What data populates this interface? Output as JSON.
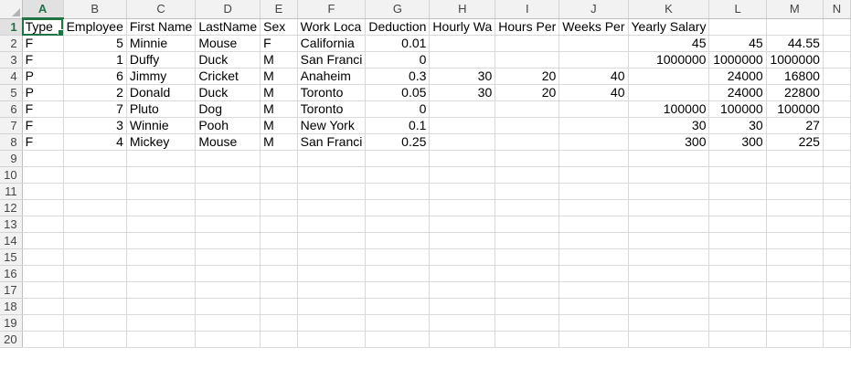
{
  "columns": [
    "A",
    "B",
    "C",
    "D",
    "E",
    "F",
    "G",
    "H",
    "I",
    "J",
    "K",
    "L",
    "M",
    "N"
  ],
  "active_column": "A",
  "active_row": "1",
  "rows": [
    {
      "n": "1",
      "cells": [
        "Type",
        "Employee",
        "First Name",
        "LastName",
        "Sex",
        "Work Loca",
        "Deduction",
        "Hourly Wa",
        "Hours Per",
        "Weeks Per",
        "Yearly Salary",
        "",
        "",
        ""
      ]
    },
    {
      "n": "2",
      "cells": [
        "F",
        "5",
        "Minnie",
        "Mouse",
        "F",
        "California",
        "0.01",
        "",
        "",
        "",
        "45",
        "45",
        "44.55",
        ""
      ]
    },
    {
      "n": "3",
      "cells": [
        "F",
        "1",
        "Duffy",
        "Duck",
        "M",
        "San Franci",
        "0",
        "",
        "",
        "",
        "1000000",
        "1000000",
        "1000000",
        ""
      ]
    },
    {
      "n": "4",
      "cells": [
        "P",
        "6",
        "Jimmy",
        "Cricket",
        "M",
        "Anaheim",
        "0.3",
        "30",
        "20",
        "40",
        "",
        "24000",
        "16800",
        ""
      ]
    },
    {
      "n": "5",
      "cells": [
        "P",
        "2",
        "Donald",
        "Duck",
        "M",
        "Toronto",
        "0.05",
        "30",
        "20",
        "40",
        "",
        "24000",
        "22800",
        ""
      ]
    },
    {
      "n": "6",
      "cells": [
        "F",
        "7",
        "Pluto",
        "Dog",
        "M",
        "Toronto",
        "0",
        "",
        "",
        "",
        "100000",
        "100000",
        "100000",
        ""
      ]
    },
    {
      "n": "7",
      "cells": [
        "F",
        "3",
        "Winnie",
        "Pooh",
        "M",
        "New York",
        "0.1",
        "",
        "",
        "",
        "30",
        "30",
        "27",
        ""
      ]
    },
    {
      "n": "8",
      "cells": [
        "F",
        "4",
        "Mickey",
        "Mouse",
        "M",
        "San Franci",
        "0.25",
        "",
        "",
        "",
        "300",
        "300",
        "225",
        ""
      ]
    },
    {
      "n": "9",
      "cells": [
        "",
        "",
        "",
        "",
        "",
        "",
        "",
        "",
        "",
        "",
        "",
        "",
        "",
        ""
      ]
    },
    {
      "n": "10",
      "cells": [
        "",
        "",
        "",
        "",
        "",
        "",
        "",
        "",
        "",
        "",
        "",
        "",
        "",
        ""
      ]
    },
    {
      "n": "11",
      "cells": [
        "",
        "",
        "",
        "",
        "",
        "",
        "",
        "",
        "",
        "",
        "",
        "",
        "",
        ""
      ]
    },
    {
      "n": "12",
      "cells": [
        "",
        "",
        "",
        "",
        "",
        "",
        "",
        "",
        "",
        "",
        "",
        "",
        "",
        ""
      ]
    },
    {
      "n": "13",
      "cells": [
        "",
        "",
        "",
        "",
        "",
        "",
        "",
        "",
        "",
        "",
        "",
        "",
        "",
        ""
      ]
    },
    {
      "n": "14",
      "cells": [
        "",
        "",
        "",
        "",
        "",
        "",
        "",
        "",
        "",
        "",
        "",
        "",
        "",
        ""
      ]
    },
    {
      "n": "15",
      "cells": [
        "",
        "",
        "",
        "",
        "",
        "",
        "",
        "",
        "",
        "",
        "",
        "",
        "",
        ""
      ]
    },
    {
      "n": "16",
      "cells": [
        "",
        "",
        "",
        "",
        "",
        "",
        "",
        "",
        "",
        "",
        "",
        "",
        "",
        ""
      ]
    },
    {
      "n": "17",
      "cells": [
        "",
        "",
        "",
        "",
        "",
        "",
        "",
        "",
        "",
        "",
        "",
        "",
        "",
        ""
      ]
    },
    {
      "n": "18",
      "cells": [
        "",
        "",
        "",
        "",
        "",
        "",
        "",
        "",
        "",
        "",
        "",
        "",
        "",
        ""
      ]
    },
    {
      "n": "19",
      "cells": [
        "",
        "",
        "",
        "",
        "",
        "",
        "",
        "",
        "",
        "",
        "",
        "",
        "",
        ""
      ]
    },
    {
      "n": "20",
      "cells": [
        "",
        "",
        "",
        "",
        "",
        "",
        "",
        "",
        "",
        "",
        "",
        "",
        "",
        ""
      ]
    }
  ],
  "colors": {
    "accent": "#217346",
    "gridline": "#d9d9d9",
    "header_bg": "#f2f2f2"
  }
}
